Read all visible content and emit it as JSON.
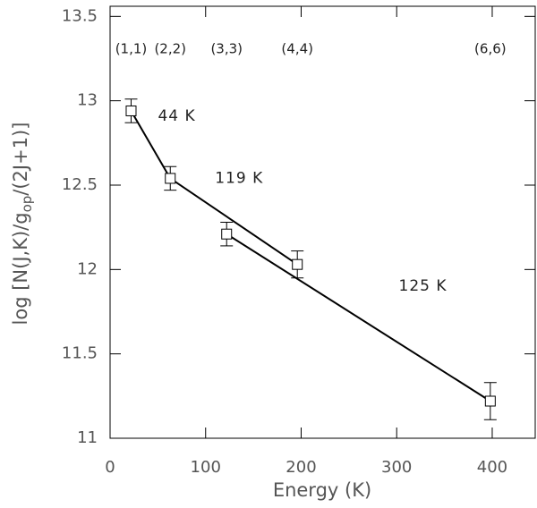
{
  "chart_data": {
    "type": "scatter",
    "xlabel": "Energy (K)",
    "ylabel_parts": [
      "log [N(J,K)/g",
      "op",
      "/(2J+1)]"
    ],
    "xlim": [
      0,
      445
    ],
    "ylim": [
      11,
      13.56
    ],
    "xticks": [
      0,
      100,
      200,
      300,
      400
    ],
    "yticks": [
      11,
      11.5,
      12,
      12.5,
      13,
      13.5
    ],
    "x": [
      22,
      63,
      122,
      196,
      398
    ],
    "values": [
      12.94,
      12.54,
      12.21,
      12.03,
      11.22
    ],
    "errors": [
      0.07,
      0.07,
      0.07,
      0.08,
      0.11
    ],
    "point_labels": [
      "(1,1)",
      "(2,2)",
      "(3,3)",
      "(4,4)",
      "(6,6)"
    ],
    "color": "#000000",
    "fits": [
      {
        "name": "44 K",
        "x": [
          22,
          63
        ],
        "values": [
          12.94,
          12.54
        ]
      },
      {
        "name": "119 K",
        "x": [
          63,
          196
        ],
        "values": [
          12.54,
          12.03
        ]
      },
      {
        "name": "125 K",
        "x": [
          122,
          398
        ],
        "values": [
          12.21,
          11.22
        ]
      }
    ]
  }
}
